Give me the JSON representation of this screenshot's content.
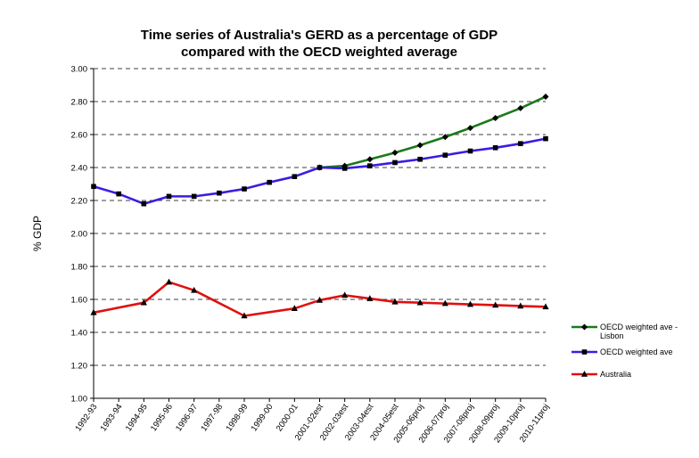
{
  "chart_data": {
    "type": "line",
    "title_line1": "Time series of Australia's GERD as a percentage of GDP",
    "title_line2": "compared with the OECD weighted average",
    "ylabel": "% GDP",
    "xlabel": "",
    "ylim": [
      1.0,
      3.0
    ],
    "ytick_step": 0.2,
    "grid": "horizontal dashed",
    "legend_position": "right",
    "categories": [
      "1992-93",
      "1993-94",
      "1994-95",
      "1995-96",
      "1996-97",
      "1997-98",
      "1998-99",
      "1999-00",
      "2000-01",
      "2001-02est",
      "2002-03est",
      "2003-04est",
      "2004-05est",
      "2005-06proj",
      "2006-07proj",
      "2007-08proj",
      "2008-09proj",
      "2009-10proj",
      "2010-11proj"
    ],
    "yticks": [
      "1.00",
      "1.20",
      "1.40",
      "1.60",
      "1.80",
      "2.00",
      "2.20",
      "2.40",
      "2.60",
      "2.80",
      "3.00"
    ],
    "series": [
      {
        "name": "OECD weighted ave - Lisbon",
        "legend_lines": [
          "OECD weighted ave -",
          "Lisbon"
        ],
        "color": "#1a7a1a",
        "marker": "diamond",
        "values": [
          null,
          null,
          null,
          null,
          null,
          null,
          null,
          null,
          null,
          2.4,
          2.41,
          2.45,
          2.49,
          2.535,
          2.585,
          2.64,
          2.7,
          2.76,
          2.83
        ]
      },
      {
        "name": "OECD weighted ave",
        "legend_lines": [
          "OECD weighted ave"
        ],
        "color": "#3a1ee0",
        "marker": "square",
        "values": [
          2.285,
          2.24,
          2.18,
          2.225,
          2.225,
          2.245,
          2.27,
          2.31,
          2.345,
          2.4,
          2.395,
          2.41,
          2.43,
          2.45,
          2.475,
          2.5,
          2.52,
          2.545,
          2.575
        ]
      },
      {
        "name": "Australia",
        "legend_lines": [
          "Australia"
        ],
        "color": "#e01010",
        "marker": "triangle",
        "values": [
          1.52,
          null,
          1.58,
          1.705,
          1.655,
          null,
          1.5,
          null,
          1.545,
          1.595,
          1.625,
          1.605,
          1.585,
          1.58,
          1.575,
          1.57,
          1.565,
          1.56,
          1.555
        ]
      }
    ]
  }
}
